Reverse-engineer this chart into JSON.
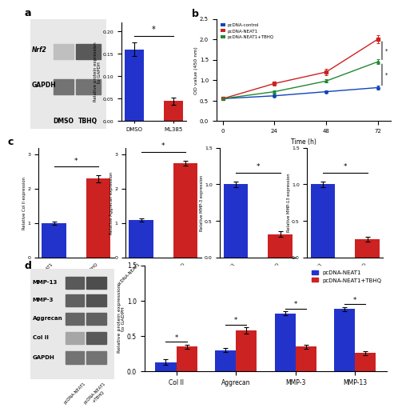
{
  "panel_a_bar": {
    "categories": [
      "DMSO",
      "ML385"
    ],
    "values": [
      0.16,
      0.045
    ],
    "errors": [
      0.015,
      0.008
    ],
    "colors": [
      "#2233cc",
      "#cc2222"
    ],
    "ylabel": "Relative protein expression\nto GAPDH",
    "ylim": [
      0,
      0.22
    ],
    "yticks": [
      0.0,
      0.05,
      0.1,
      0.15,
      0.2
    ]
  },
  "panel_b": {
    "time": [
      0,
      24,
      48,
      72
    ],
    "control": [
      0.55,
      0.62,
      0.72,
      0.82
    ],
    "neat1": [
      0.55,
      0.92,
      1.2,
      2.0
    ],
    "neat1_tbhq": [
      0.55,
      0.72,
      0.98,
      1.45
    ],
    "control_err": [
      0.02,
      0.03,
      0.03,
      0.04
    ],
    "neat1_err": [
      0.02,
      0.05,
      0.07,
      0.09
    ],
    "neat1_tbhq_err": [
      0.02,
      0.03,
      0.04,
      0.06
    ],
    "colors": [
      "#1144bb",
      "#cc2222",
      "#228833"
    ],
    "ylabel": "OD value (450 nm)",
    "xlabel": "Time (h)",
    "ylim": [
      0.0,
      2.5
    ],
    "yticks": [
      0.0,
      0.5,
      1.0,
      1.5,
      2.0,
      2.5
    ],
    "legend": [
      "pcDNA-control",
      "pcDNA-NEAT1",
      "pcDNA-NEAT1+TBHQ"
    ]
  },
  "panel_c": [
    {
      "ylabel": "Relative Col II expression",
      "values": [
        1.0,
        2.3
      ],
      "errors": [
        0.05,
        0.1
      ],
      "colors": [
        "#2233cc",
        "#cc2222"
      ],
      "ylim": [
        0,
        3.2
      ],
      "yticks": [
        0,
        1,
        2,
        3
      ]
    },
    {
      "ylabel": "Relative Aggrecan expression",
      "values": [
        1.1,
        2.75
      ],
      "errors": [
        0.05,
        0.08
      ],
      "colors": [
        "#2233cc",
        "#cc2222"
      ],
      "ylim": [
        0,
        3.2
      ],
      "yticks": [
        0,
        1,
        2,
        3
      ]
    },
    {
      "ylabel": "Relative MMP-3 expression",
      "values": [
        1.0,
        0.32
      ],
      "errors": [
        0.04,
        0.04
      ],
      "colors": [
        "#2233cc",
        "#cc2222"
      ],
      "ylim": [
        0,
        1.5
      ],
      "yticks": [
        0.0,
        0.5,
        1.0,
        1.5
      ]
    },
    {
      "ylabel": "Relative MMP-13 expression",
      "values": [
        1.0,
        0.25
      ],
      "errors": [
        0.04,
        0.03
      ],
      "colors": [
        "#2233cc",
        "#cc2222"
      ],
      "ylim": [
        0,
        1.5
      ],
      "yticks": [
        0.0,
        0.5,
        1.0,
        1.5
      ]
    }
  ],
  "panel_d_bar": {
    "categories": [
      "Col II",
      "Aggrecan",
      "MMP-3",
      "MMP-13"
    ],
    "neat1_values": [
      0.13,
      0.3,
      0.82,
      0.88
    ],
    "neat1_tbhq_values": [
      0.35,
      0.58,
      0.35,
      0.26
    ],
    "neat1_errors": [
      0.04,
      0.03,
      0.03,
      0.03
    ],
    "neat1_tbhq_errors": [
      0.03,
      0.04,
      0.03,
      0.03
    ],
    "colors": [
      "#2233cc",
      "#cc2222"
    ],
    "ylabel": "Relative protein expression\nto GADPH",
    "ylim": [
      0,
      1.5
    ],
    "yticks": [
      0.0,
      0.5,
      1.0,
      1.5
    ],
    "legend": [
      "pcDNA-NEAT1",
      "pcDNA-NEAT1+TBHQ"
    ]
  },
  "wb_a": {
    "nrf2_label": "Nrf2",
    "gapdh_label": "GAPDH",
    "dmso_label": "DMSO",
    "tbhq_label": "TBHQ",
    "nrf2_dmso_gray": 0.75,
    "nrf2_tbhq_gray": 0.35,
    "gapdh_dmso_gray": 0.45,
    "gapdh_tbhq_gray": 0.45
  },
  "wb_d": {
    "labels": [
      "MMP-13",
      "MMP-3",
      "Aggrecan",
      "Col II",
      "GAPDH"
    ],
    "col1_label": "pcDNA-NEAT1",
    "col2_label": "pcDNA-NEAT1\n+TBHQ",
    "band_gray1": [
      0.35,
      0.38,
      0.4,
      0.65,
      0.45
    ],
    "band_gray2": [
      0.3,
      0.32,
      0.38,
      0.35,
      0.45
    ]
  },
  "background_color": "#ffffff"
}
